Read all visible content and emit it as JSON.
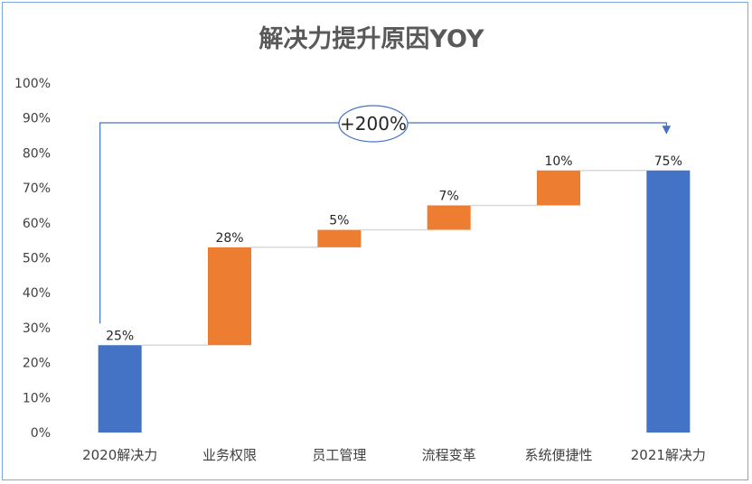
{
  "chart_data": {
    "type": "bar",
    "subtype": "waterfall",
    "title": "解决力提升原因YOY",
    "categories": [
      "2020解决力",
      "业务权限",
      "员工管理",
      "流程变革",
      "系统便捷性",
      "2021解决力"
    ],
    "series": [
      {
        "kind": "total",
        "values": [
          25,
          null,
          null,
          null,
          null,
          75
        ],
        "color": "#4472c4"
      },
      {
        "kind": "increase",
        "values": [
          null,
          28,
          5,
          7,
          10,
          null
        ],
        "color": "#ed7d31"
      }
    ],
    "data_labels": [
      "25%",
      "28%",
      "5%",
      "7%",
      "10%",
      "75%"
    ],
    "ylim": [
      0,
      100
    ],
    "yticks": [
      0,
      10,
      20,
      30,
      40,
      50,
      60,
      70,
      80,
      90,
      100
    ],
    "ytick_labels": [
      "0%",
      "10%",
      "20%",
      "30%",
      "40%",
      "50%",
      "60%",
      "70%",
      "80%",
      "90%",
      "100%"
    ],
    "grid": false,
    "connector_color": "#d9d9d9",
    "annotation": {
      "text": "+200%",
      "from_category": "2020解决力",
      "to_category": "2021解决力",
      "arrow_color": "#4472c4"
    }
  }
}
